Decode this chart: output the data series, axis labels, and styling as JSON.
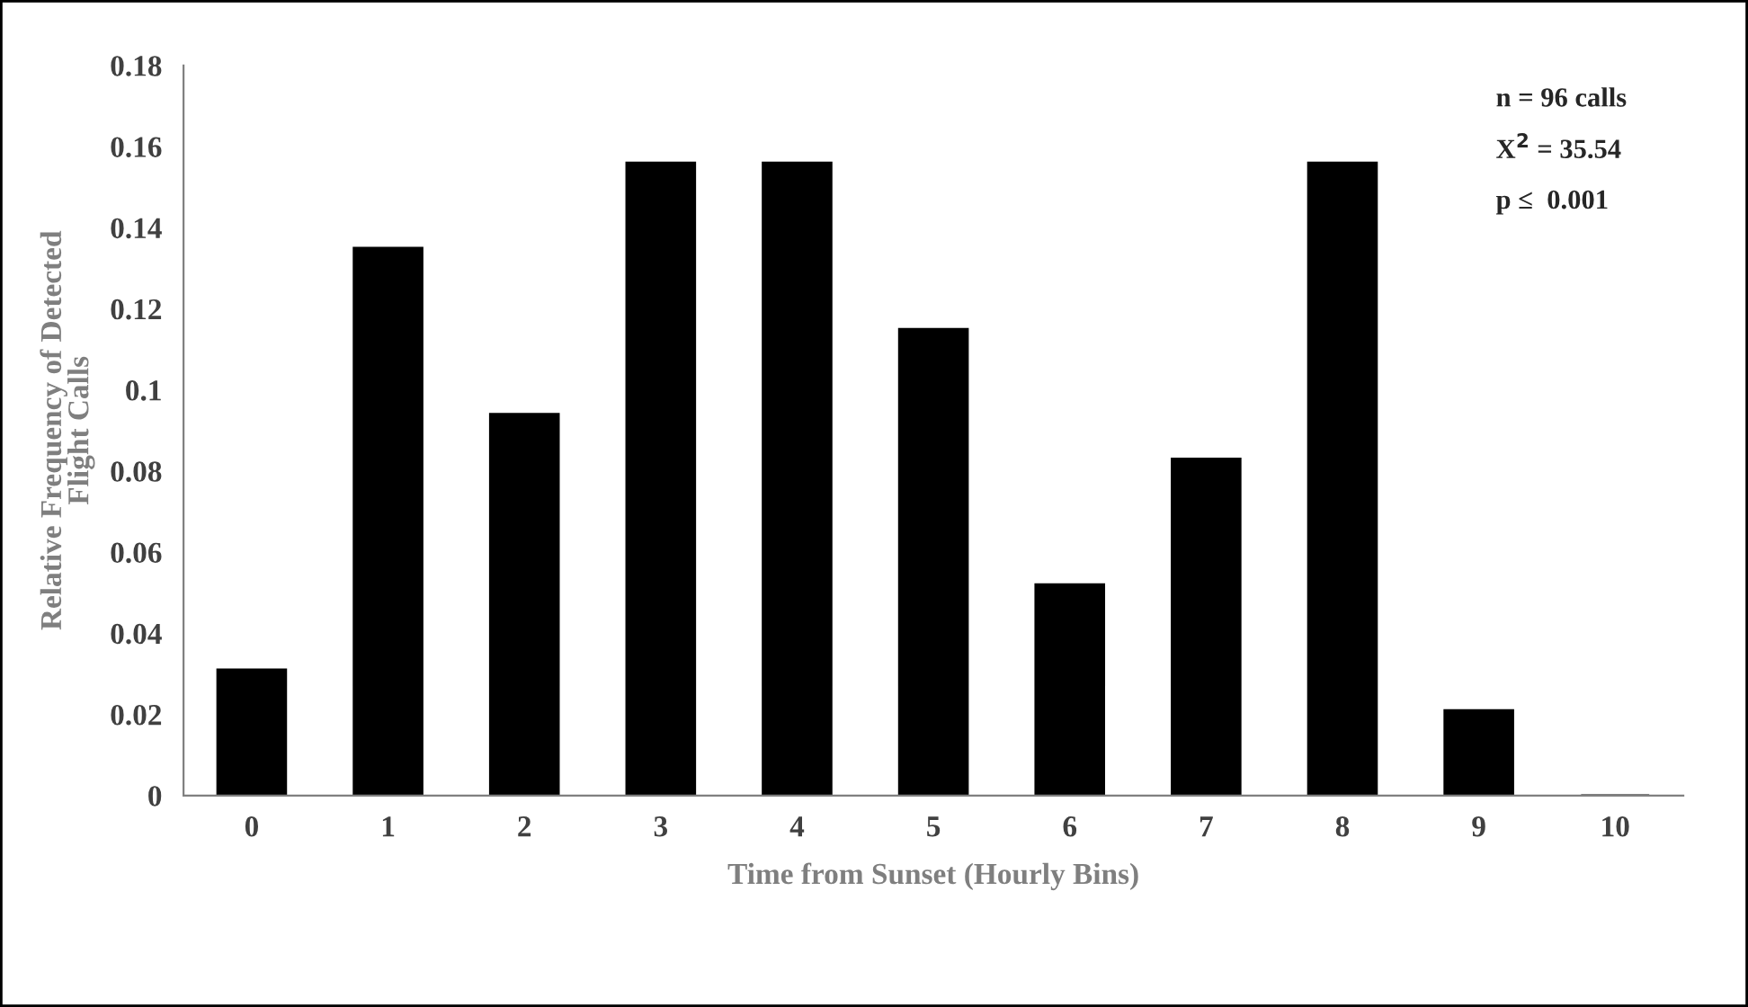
{
  "chart_data": {
    "type": "bar",
    "xlabel": "Time from Sunset (Hourly Bins)",
    "ylabel": "Relative Frequency of Detected\nFlight Calls",
    "categories": [
      "0",
      "1",
      "2",
      "3",
      "4",
      "5",
      "6",
      "7",
      "8",
      "9",
      "10"
    ],
    "values": [
      0.031,
      0.135,
      0.094,
      0.156,
      0.156,
      0.115,
      0.052,
      0.083,
      0.156,
      0.021,
      0
    ],
    "color": "#000000",
    "ylim": [
      0,
      0.18
    ],
    "yticks": [
      0,
      0.02,
      0.04,
      0.06,
      0.08,
      0.1,
      0.12,
      0.14,
      0.16,
      0.18
    ],
    "grid": false,
    "annotations": [
      "n = 96 calls",
      "X$^{2}$ = 35.54",
      "p ≤  0.001"
    ]
  }
}
